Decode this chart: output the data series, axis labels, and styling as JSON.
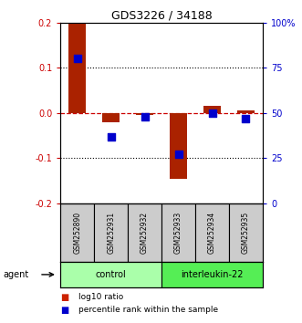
{
  "title": "GDS3226 / 34188",
  "samples": [
    "GSM252890",
    "GSM252931",
    "GSM252932",
    "GSM252933",
    "GSM252934",
    "GSM252935"
  ],
  "log10_ratio": [
    0.2,
    -0.02,
    -0.005,
    -0.145,
    0.015,
    0.005
  ],
  "percentile_rank": [
    80,
    37,
    48,
    27,
    50,
    47
  ],
  "groups": [
    {
      "label": "control",
      "indices": [
        0,
        1,
        2
      ],
      "color": "#aaffaa"
    },
    {
      "label": "interleukin-22",
      "indices": [
        3,
        4,
        5
      ],
      "color": "#55ee55"
    }
  ],
  "ylim_left": [
    -0.2,
    0.2
  ],
  "ylim_right": [
    0,
    100
  ],
  "yticks_left": [
    -0.2,
    -0.1,
    0.0,
    0.1,
    0.2
  ],
  "yticks_right": [
    0,
    25,
    50,
    75,
    100
  ],
  "ytick_labels_right": [
    "0",
    "25",
    "50",
    "75",
    "100%"
  ],
  "bar_color": "#aa2200",
  "dot_color": "#0000cc",
  "zero_line_color": "#cc0000",
  "grid_color": "#000000",
  "bar_width": 0.5,
  "sample_box_color": "#cccccc",
  "legend_bar_color": "#cc2200",
  "legend_dot_color": "#0000cc",
  "left_ylabel_color": "#cc0000",
  "right_ylabel_color": "#0000cc",
  "title_fontsize": 9,
  "tick_fontsize": 7,
  "sample_fontsize": 5.5,
  "group_fontsize": 7,
  "legend_fontsize": 6.5,
  "agent_fontsize": 7
}
